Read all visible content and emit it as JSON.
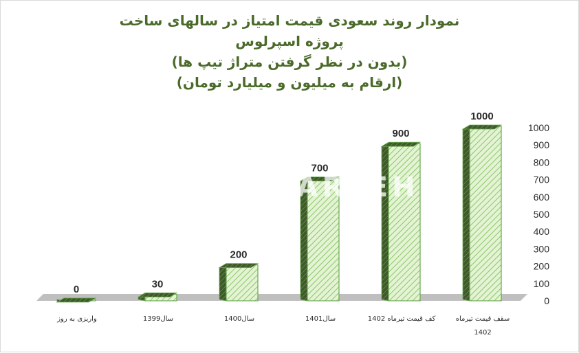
{
  "title": {
    "line1": "نمودار روند سعودی قیمت امتیاز در سالهای ساخت",
    "line2": "پروژه اسپرلوس",
    "line3": "(بدون در نظر گرفتن متراژ تیپ ها)",
    "line4": "(ارقام به میلیون و میلیارد تومان)"
  },
  "watermark": "ARTEHI",
  "colors": {
    "bar_light": "#e3f3d3",
    "bar_dark": "#3f5a2a",
    "bar_edge": "#6aa84f",
    "hatch": "#8cc66c",
    "floor": "#bfbfbf"
  },
  "chart_data": {
    "type": "bar",
    "style": "3d-cylinder-bar",
    "categories": [
      "واریزی به روز",
      "سال1399",
      "سال1400",
      "سال1401",
      "کف قیمت تیرماه 1402",
      "سقف قیمت تیرماه 1402"
    ],
    "values": [
      0,
      30,
      200,
      700,
      900,
      1000
    ],
    "ylim": [
      0,
      1000
    ],
    "yticks": [
      0,
      100,
      200,
      300,
      400,
      500,
      600,
      700,
      800,
      900,
      1000
    ],
    "yaxis_position": "right",
    "grid": false,
    "legend": "none"
  }
}
